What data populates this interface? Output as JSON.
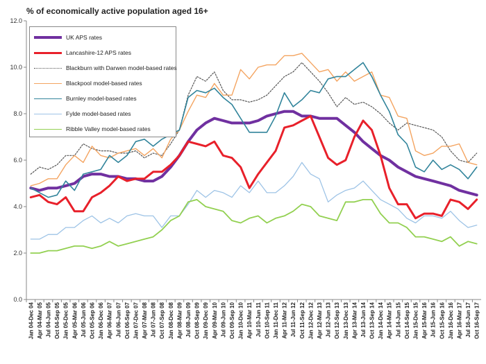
{
  "chart_data": {
    "type": "line",
    "title": "% of economically active population aged 16+",
    "xlabel": "",
    "ylabel": "",
    "ylim": [
      0,
      12
    ],
    "yticks": [
      "0.0",
      "2.0",
      "4.0",
      "6.0",
      "8.0",
      "10.0",
      "12.0"
    ],
    "grid": false,
    "legend_position": "top-left",
    "categories": [
      "Jan 04-Dec 04",
      "Apr 04-Mar 05",
      "Jul 04-Jun 05",
      "Oct 04-Sep 05",
      "Jan 05-Dec 05",
      "Apr 05-Mar 06",
      "Jul 05-Jun 06",
      "Oct 05-Sep 06",
      "Jan 06-Dec 06",
      "Apr 06-Mar 07",
      "Jul 06-Jun 07",
      "Oct 06-Sep 07",
      "Jan 07-Dec 07",
      "Apr 07-Mar 08",
      "Jul 07-Jun 08",
      "Oct 07-Sep 08",
      "Jan 08-Dec 08",
      "Apr 08-Mar 09",
      "Jul 08-Jun 09",
      "Oct 08-Sep 09",
      "Jan 09-Dec 09",
      "Apr 09-Mar 10",
      "Jul 09-Jun 10",
      "Oct 09-Sep 10",
      "Jan 10-Dec 10",
      "Apr 10-Mar 11",
      "Jul 10-Jun 11",
      "Oct 10-Sep 11",
      "Jan 11-Dec 11",
      "Apr 11-Mar 12",
      "Jul 11-Jun 12",
      "Oct 11-Sep 12",
      "Jan 12-Dec 12",
      "Apr 12-Mar 13",
      "Jul 12-Jun 13",
      "Oct 12-Sep 13",
      "Jan 13-Dec 13",
      "Apr 13-Mar 14",
      "Jul 13-Jun 14",
      "Oct 13-Sep 14",
      "Jan 14-Dec 14",
      "Apr 14-Mar 15",
      "Jul 14-Jun 15",
      "Oct 14-Sep 15",
      "Jan 15-Dec 15",
      "Apr 15-Mar 16",
      "Jul 15-Jun 16",
      "Oct 15-Sep 16",
      "Jan 16-Dec 16",
      "Apr 16-Mar 17",
      "Jul 16-Jun 17",
      "Oct 16-Sep 17"
    ],
    "series": [
      {
        "name": "UK APS rates",
        "color": "#7030a0",
        "width": 4,
        "dash": "",
        "values": [
          4.8,
          4.7,
          4.8,
          4.8,
          4.9,
          5.0,
          5.3,
          5.4,
          5.4,
          5.3,
          5.3,
          5.2,
          5.2,
          5.1,
          5.1,
          5.3,
          5.7,
          6.2,
          6.8,
          7.3,
          7.6,
          7.8,
          7.7,
          7.6,
          7.6,
          7.6,
          7.7,
          7.9,
          8.0,
          8.1,
          8.1,
          7.9,
          7.9,
          7.8,
          7.8,
          7.8,
          7.5,
          7.2,
          6.8,
          6.5,
          6.2,
          6.0,
          5.7,
          5.5,
          5.3,
          5.2,
          5.1,
          5.0,
          4.9,
          4.7,
          4.6,
          4.5
        ]
      },
      {
        "name": "Lancashire-12 APS rates",
        "color": "#e8202a",
        "width": 3,
        "dash": "",
        "values": [
          4.4,
          4.5,
          4.2,
          4.1,
          4.4,
          3.8,
          3.8,
          4.4,
          4.6,
          4.9,
          5.3,
          5.1,
          5.2,
          5.2,
          5.5,
          5.5,
          5.8,
          6.2,
          6.8,
          6.7,
          6.6,
          6.8,
          6.2,
          6.1,
          5.7,
          4.8,
          5.4,
          5.9,
          6.4,
          7.4,
          7.5,
          7.7,
          7.9,
          7.0,
          6.1,
          5.8,
          6.0,
          7.0,
          7.7,
          7.3,
          6.2,
          4.8,
          4.1,
          4.1,
          3.5,
          3.7,
          3.7,
          3.6,
          4.3,
          4.2,
          3.9,
          4.3
        ]
      },
      {
        "name": "Blackburn with Darwen model-based rates",
        "color": "#555555",
        "width": 1.2,
        "dash": "2,2",
        "values": [
          5.4,
          5.7,
          5.6,
          5.8,
          6.2,
          6.2,
          6.7,
          6.5,
          6.4,
          6.4,
          6.3,
          6.3,
          6.4,
          6.1,
          6.3,
          6.2,
          6.7,
          7.3,
          8.8,
          9.6,
          9.4,
          9.8,
          9.0,
          8.6,
          8.6,
          8.5,
          8.6,
          8.8,
          9.2,
          9.6,
          9.8,
          10.2,
          9.8,
          9.4,
          8.9,
          8.3,
          8.7,
          8.4,
          8.5,
          8.3,
          8.0,
          7.6,
          7.3,
          7.6,
          7.5,
          7.4,
          7.3,
          7.0,
          6.4,
          6.0,
          5.9,
          6.3
        ]
      },
      {
        "name": "Blackpool model-based rates",
        "color": "#f4a460",
        "width": 1.4,
        "dash": "",
        "values": [
          4.9,
          5.0,
          5.2,
          5.2,
          5.8,
          6.2,
          5.9,
          6.6,
          6.2,
          6.1,
          6.3,
          6.4,
          6.5,
          6.2,
          6.5,
          6.1,
          6.9,
          7.3,
          8.1,
          8.8,
          8.7,
          9.3,
          8.8,
          8.8,
          9.9,
          9.5,
          10.0,
          10.1,
          10.1,
          10.5,
          10.5,
          10.6,
          10.2,
          9.8,
          9.9,
          9.4,
          9.8,
          9.4,
          9.6,
          9.8,
          8.8,
          8.7,
          7.9,
          7.8,
          6.4,
          6.2,
          6.3,
          6.6,
          6.6,
          6.7,
          5.9,
          5.8
        ]
      },
      {
        "name": "Burnley model-based rates",
        "color": "#31849b",
        "width": 1.6,
        "dash": "",
        "values": [
          4.8,
          4.6,
          4.4,
          4.5,
          5.1,
          4.7,
          5.4,
          5.5,
          5.6,
          6.2,
          5.9,
          6.2,
          6.8,
          6.9,
          6.6,
          6.9,
          7.1,
          7.3,
          8.7,
          9.0,
          8.9,
          9.1,
          8.7,
          8.4,
          7.8,
          7.2,
          7.2,
          7.2,
          7.9,
          8.9,
          8.3,
          8.6,
          9.0,
          8.9,
          9.5,
          9.6,
          9.6,
          9.9,
          10.2,
          9.6,
          8.8,
          8.1,
          7.1,
          6.7,
          5.7,
          5.5,
          6.0,
          5.6,
          5.8,
          5.6,
          5.2,
          5.7
        ]
      },
      {
        "name": "Fylde model-based rates",
        "color": "#9dc3e6",
        "width": 1.3,
        "dash": "",
        "values": [
          2.6,
          2.6,
          2.8,
          2.8,
          3.1,
          3.1,
          3.4,
          3.6,
          3.3,
          3.5,
          3.3,
          3.6,
          3.7,
          3.6,
          3.6,
          3.1,
          3.6,
          3.6,
          4.1,
          4.7,
          4.4,
          4.7,
          4.6,
          4.4,
          4.9,
          4.6,
          5.1,
          4.6,
          4.6,
          4.9,
          5.3,
          5.9,
          5.4,
          5.2,
          4.2,
          4.5,
          4.7,
          4.8,
          5.1,
          4.7,
          4.3,
          4.1,
          3.9,
          3.5,
          3.3,
          3.6,
          3.6,
          3.5,
          3.8,
          3.4,
          3.1,
          3.2
        ]
      },
      {
        "name": "Ribble Valley model-based rates",
        "color": "#92d050",
        "width": 1.8,
        "dash": "",
        "values": [
          2.0,
          2.0,
          2.1,
          2.1,
          2.2,
          2.3,
          2.3,
          2.2,
          2.3,
          2.5,
          2.3,
          2.4,
          2.5,
          2.6,
          2.7,
          3.0,
          3.4,
          3.6,
          4.2,
          4.3,
          4.0,
          3.9,
          3.8,
          3.4,
          3.3,
          3.5,
          3.6,
          3.3,
          3.5,
          3.6,
          3.8,
          4.1,
          4.0,
          3.6,
          3.5,
          3.4,
          4.2,
          4.2,
          4.3,
          4.3,
          3.7,
          3.3,
          3.3,
          3.1,
          2.7,
          2.7,
          2.6,
          2.5,
          2.7,
          2.3,
          2.5,
          2.4
        ]
      }
    ]
  }
}
